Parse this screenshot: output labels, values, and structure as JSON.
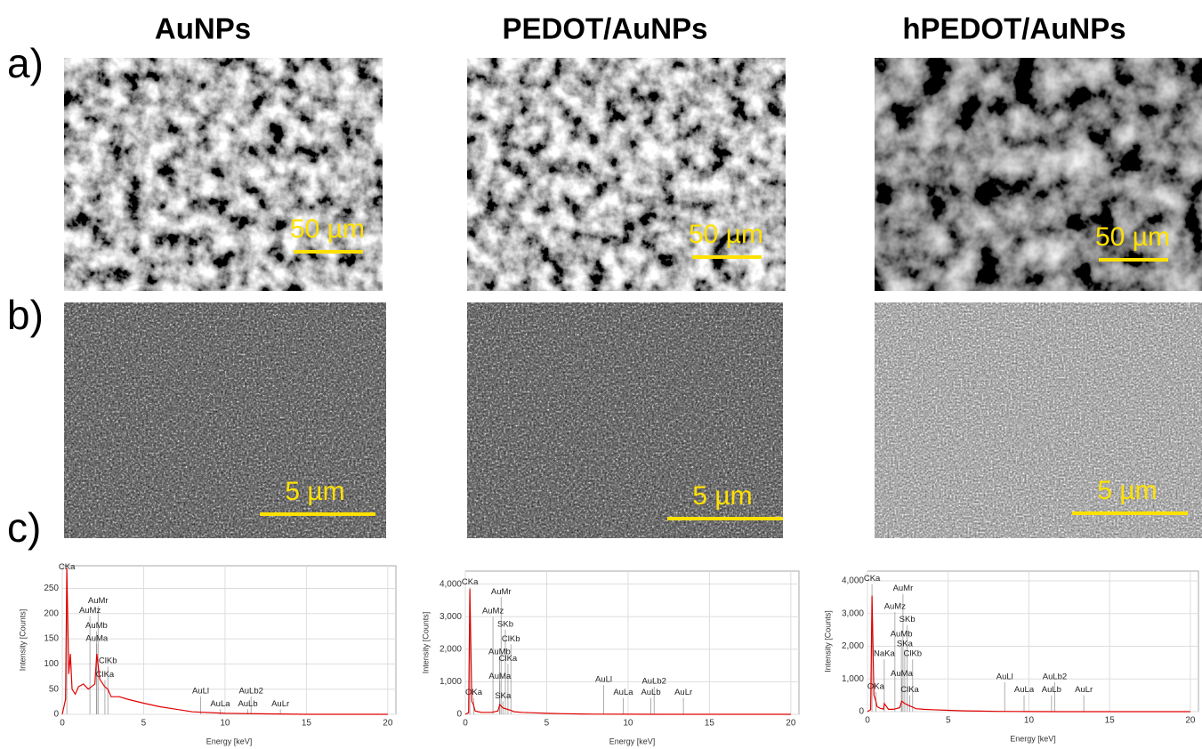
{
  "row_labels": [
    "a)",
    "b)",
    "c)"
  ],
  "columns": [
    {
      "title": "AuNPs",
      "scale_a": "50 µm",
      "scale_b": "5 µm",
      "spectrum": {
        "type": "line",
        "x_label": "Energy [keV]",
        "y_label": "Intensity [Counts]",
        "xlim": [
          0,
          20.5
        ],
        "ylim": [
          0,
          295
        ],
        "xticks": [
          0,
          5,
          10,
          15,
          20
        ],
        "yticks": [
          0,
          50,
          100,
          150,
          200,
          250
        ],
        "color": "#e00000",
        "grid": true,
        "x": [
          0,
          0.2,
          0.28,
          0.4,
          0.5,
          0.6,
          0.8,
          1,
          1.3,
          1.6,
          2.0,
          2.12,
          2.3,
          2.6,
          2.8,
          3.0,
          3.5,
          4,
          5,
          6,
          7,
          8,
          10,
          12,
          15,
          20
        ],
        "values": [
          0,
          30,
          290,
          80,
          120,
          50,
          40,
          55,
          60,
          50,
          60,
          120,
          70,
          55,
          50,
          35,
          35,
          30,
          22,
          15,
          10,
          5,
          2,
          1,
          0,
          0
        ],
        "peaks": [
          {
            "label": "CKa",
            "energy": 0.28,
            "y": 282
          },
          {
            "label": "AuMr",
            "energy": 2.2,
            "y": 215
          },
          {
            "label": "AuMz",
            "energy": 1.7,
            "y": 195
          },
          {
            "label": "AuMb",
            "energy": 2.1,
            "y": 165
          },
          {
            "label": "AuMa",
            "energy": 2.12,
            "y": 140
          },
          {
            "label": "ClKb",
            "energy": 2.8,
            "y": 95
          },
          {
            "label": "ClKa",
            "energy": 2.62,
            "y": 68
          },
          {
            "label": "AuLl",
            "energy": 8.5,
            "y": 35
          },
          {
            "label": "AuLa",
            "energy": 9.7,
            "y": 10
          },
          {
            "label": "AuLb2",
            "energy": 11.6,
            "y": 35
          },
          {
            "label": "AuLb",
            "energy": 11.4,
            "y": 10
          },
          {
            "label": "AuLr",
            "energy": 13.4,
            "y": 10
          }
        ]
      }
    },
    {
      "title": "PEDOT/AuNPs",
      "scale_a": "50 µm",
      "scale_b": "5 µm",
      "spectrum": {
        "type": "line",
        "x_label": "Energy [keV]",
        "y_label": "Intensity [Counts]",
        "xlim": [
          0,
          20.5
        ],
        "ylim": [
          0,
          4400
        ],
        "xticks": [
          0,
          5,
          10,
          15,
          20
        ],
        "yticks": [
          0,
          {
            "value": 1000,
            "label": "1,000"
          },
          {
            "value": 2000,
            "label": "2,000"
          },
          {
            "value": 3000,
            "label": "3,000"
          },
          {
            "value": 4000,
            "label": "4,000"
          }
        ],
        "color": "#e00000",
        "grid": true,
        "x": [
          0,
          0.2,
          0.28,
          0.4,
          0.5,
          0.6,
          0.8,
          1,
          1.3,
          1.6,
          2.0,
          2.12,
          2.3,
          2.6,
          2.8,
          3.0,
          3.5,
          4,
          5,
          6,
          7,
          8,
          10,
          12,
          15,
          20
        ],
        "values": [
          0,
          50,
          3850,
          400,
          300,
          100,
          80,
          60,
          60,
          60,
          100,
          300,
          200,
          150,
          120,
          80,
          60,
          50,
          30,
          20,
          10,
          5,
          2,
          1,
          0,
          0
        ],
        "peaks": [
          {
            "label": "CKa",
            "energy": 0.28,
            "y": 3900
          },
          {
            "label": "AuMr",
            "energy": 2.2,
            "y": 3600
          },
          {
            "label": "AuMz",
            "energy": 1.7,
            "y": 3000
          },
          {
            "label": "SKb",
            "energy": 2.46,
            "y": 2600
          },
          {
            "label": "ClKb",
            "energy": 2.8,
            "y": 2150
          },
          {
            "label": "AuMb",
            "energy": 2.1,
            "y": 1750
          },
          {
            "label": "ClKa",
            "energy": 2.62,
            "y": 1550
          },
          {
            "label": "AuMa",
            "energy": 2.12,
            "y": 1000
          },
          {
            "label": "OKa",
            "energy": 0.52,
            "y": 500
          },
          {
            "label": "SKa",
            "energy": 2.31,
            "y": 400
          },
          {
            "label": "AuLl",
            "energy": 8.5,
            "y": 900
          },
          {
            "label": "AuLa",
            "energy": 9.7,
            "y": 500
          },
          {
            "label": "AuLb2",
            "energy": 11.6,
            "y": 850
          },
          {
            "label": "AuLb",
            "energy": 11.4,
            "y": 500
          },
          {
            "label": "AuLr",
            "energy": 13.4,
            "y": 500
          }
        ]
      }
    },
    {
      "title": "hPEDOT/AuNPs",
      "scale_a": "50 µm",
      "scale_b": "5 µm",
      "spectrum": {
        "type": "line",
        "x_label": "Energy [keV]",
        "y_label": "Intensity [Counts]",
        "xlim": [
          0,
          20.5
        ],
        "ylim": [
          0,
          4300
        ],
        "xticks": [
          0,
          5,
          10,
          15,
          20
        ],
        "yticks": [
          0,
          {
            "value": 1000,
            "label": "1,000"
          },
          {
            "value": 2000,
            "label": "2,000"
          },
          {
            "value": 3000,
            "label": "3,000"
          },
          {
            "value": 4000,
            "label": "4,000"
          }
        ],
        "color": "#e00000",
        "grid": true,
        "x": [
          0,
          0.2,
          0.28,
          0.4,
          0.5,
          0.6,
          0.8,
          1,
          1.04,
          1.3,
          1.6,
          2.0,
          2.12,
          2.3,
          2.6,
          2.8,
          3.0,
          3.5,
          4,
          5,
          6,
          7,
          8,
          10,
          12,
          15,
          20
        ],
        "values": [
          0,
          60,
          3550,
          500,
          350,
          150,
          100,
          80,
          250,
          70,
          70,
          120,
          320,
          250,
          180,
          140,
          90,
          70,
          60,
          40,
          25,
          15,
          8,
          3,
          1,
          0,
          0
        ],
        "peaks": [
          {
            "label": "CKa",
            "energy": 0.28,
            "y": 3900
          },
          {
            "label": "AuMr",
            "energy": 2.2,
            "y": 3600
          },
          {
            "label": "AuMz",
            "energy": 1.7,
            "y": 3050
          },
          {
            "label": "SKb",
            "energy": 2.46,
            "y": 2650
          },
          {
            "label": "AuMb",
            "energy": 2.1,
            "y": 2200
          },
          {
            "label": "SKa",
            "energy": 2.31,
            "y": 1900
          },
          {
            "label": "NaKa",
            "energy": 1.04,
            "y": 1600
          },
          {
            "label": "ClKb",
            "energy": 2.8,
            "y": 1600
          },
          {
            "label": "AuMa",
            "energy": 2.12,
            "y": 1000
          },
          {
            "label": "OKa",
            "energy": 0.52,
            "y": 600
          },
          {
            "label": "ClKa",
            "energy": 2.62,
            "y": 500
          },
          {
            "label": "AuLl",
            "energy": 8.5,
            "y": 900
          },
          {
            "label": "AuLa",
            "energy": 9.7,
            "y": 500
          },
          {
            "label": "AuLb2",
            "energy": 11.6,
            "y": 900
          },
          {
            "label": "AuLb",
            "energy": 11.4,
            "y": 500
          },
          {
            "label": "AuLr",
            "energy": 13.4,
            "y": 500
          }
        ]
      }
    }
  ]
}
